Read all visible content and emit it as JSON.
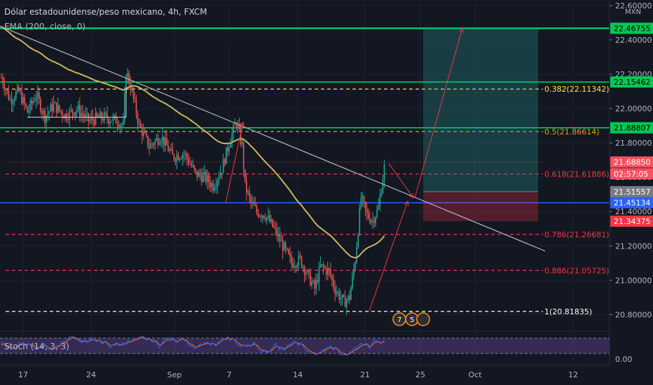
{
  "chart_data": {
    "type": "candlestick",
    "title": "Dólar estadounidense/peso mexicano, 4h, FXCM",
    "indicator_label": "EMA (200, close, 0)",
    "stoch_label": "Stoch (14, 3, 3)",
    "currency": "MXN",
    "y_ticks": [
      "22.60000",
      "22.40000",
      "22.20000",
      "22.00000",
      "21.80000",
      "21.60000",
      "21.40000",
      "21.20000",
      "21.00000",
      "20.80000"
    ],
    "ylim": [
      20.72,
      22.62
    ],
    "x_ticks": [
      "17",
      "24",
      "Sep",
      "7",
      "14",
      "21",
      "25",
      "Oct",
      "12"
    ],
    "stoch_tick": "0.00",
    "fib_levels": [
      {
        "label": "0.382(22.11342)",
        "value": 22.11342,
        "color": "#ffeb3b"
      },
      {
        "label": "0.5(21.86614)",
        "value": 21.86614,
        "color": "#ff9800"
      },
      {
        "label": "0.618(21.61886)",
        "value": 21.61886,
        "color": "#f23645"
      },
      {
        "label": "0.786(21.26681)",
        "value": 21.26681,
        "color": "#f23645"
      },
      {
        "label": "0.886(21.05725)",
        "value": 21.05725,
        "color": "#f23645"
      },
      {
        "label": "1(20.81835)",
        "value": 20.81835,
        "color": "#ffffff"
      }
    ],
    "horizontal_lines": [
      {
        "value": 22.46755,
        "color": "#00e676"
      },
      {
        "value": 22.15462,
        "color": "#00e676"
      },
      {
        "value": 21.88807,
        "color": "#00e676"
      },
      {
        "value": 21.45134,
        "color": "#2962ff"
      }
    ],
    "price_tags": [
      {
        "text": "22.46755",
        "value": 22.46755,
        "bg": "#00c853",
        "fg": "#000000"
      },
      {
        "text": "22.15462",
        "value": 22.15462,
        "bg": "#00c853",
        "fg": "#000000"
      },
      {
        "text": "21.88807",
        "value": 21.88807,
        "bg": "#00c853",
        "fg": "#000000"
      },
      {
        "text": "21.68850",
        "value": 21.6885,
        "bg": "#f7525f",
        "fg": "#ffffff"
      },
      {
        "text": "02:57:05",
        "value": 21.62,
        "bg": "#f7525f",
        "fg": "#ffffff"
      },
      {
        "text": "21.51557",
        "value": 21.51557,
        "bg": "#787b86",
        "fg": "#ffffff"
      },
      {
        "text": "21.45134",
        "value": 21.45134,
        "bg": "#2962ff",
        "fg": "#ffffff"
      },
      {
        "text": "21.34375",
        "value": 21.34375,
        "bg": "#f23645",
        "fg": "#ffffff"
      }
    ],
    "event_badges": [
      "7",
      "5"
    ],
    "colors": {
      "background": "#131722",
      "up": "#26a69a",
      "down": "#ef5350",
      "ema": "#c9b458",
      "trendline": "#b2b5be",
      "arrow": "#f23645",
      "stoch_k": "#2962ff",
      "stoch_d": "#ff6d00"
    }
  }
}
